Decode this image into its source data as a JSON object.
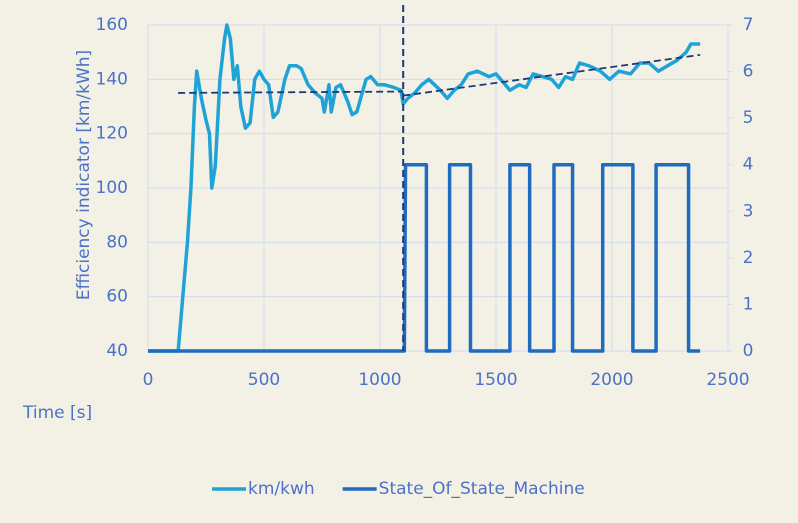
{
  "chart_data": {
    "type": "line",
    "y_label": "Efficiency indicator [km/kWh]",
    "x_label": "Time [s]",
    "xlim": [
      0,
      2500
    ],
    "xticks": [
      0,
      500,
      1000,
      1500,
      2000,
      2500
    ],
    "ylim": [
      40,
      160
    ],
    "yticks": [
      40,
      60,
      80,
      100,
      120,
      140,
      160
    ],
    "y2lim": [
      0,
      7
    ],
    "y2ticks": [
      0,
      1,
      2,
      3,
      4,
      5,
      6,
      7
    ],
    "grid": true,
    "legend": "bottom",
    "vline": 1100,
    "trendlines": [
      {
        "x": [
          130,
          1100
        ],
        "y": [
          135,
          135.5
        ]
      },
      {
        "x": [
          1100,
          2380
        ],
        "y": [
          134,
          149
        ]
      }
    ],
    "series": [
      {
        "name": "km/kwh",
        "color": "#1fa2d6",
        "x": [
          0,
          120,
          130,
          150,
          170,
          185,
          200,
          210,
          230,
          250,
          265,
          275,
          290,
          310,
          330,
          340,
          355,
          370,
          385,
          400,
          420,
          440,
          460,
          480,
          500,
          520,
          540,
          560,
          590,
          610,
          640,
          660,
          690,
          720,
          750,
          760,
          780,
          790,
          810,
          830,
          860,
          880,
          900,
          920,
          940,
          960,
          990,
          1020,
          1060,
          1090,
          1100,
          1120,
          1150,
          1180,
          1210,
          1260,
          1290,
          1320,
          1350,
          1380,
          1420,
          1470,
          1500,
          1530,
          1560,
          1600,
          1630,
          1660,
          1700,
          1740,
          1770,
          1800,
          1830,
          1860,
          1900,
          1950,
          1990,
          2030,
          2080,
          2120,
          2160,
          2200,
          2240,
          2280,
          2320,
          2340,
          2380
        ],
        "values": [
          40,
          40,
          40,
          60,
          80,
          100,
          130,
          143,
          133,
          125,
          120,
          100,
          108,
          140,
          155,
          160,
          155,
          140,
          145,
          130,
          122,
          124,
          140,
          143,
          140,
          138,
          126,
          128,
          140,
          145,
          145,
          144,
          138,
          135,
          133,
          128,
          138,
          128,
          137,
          138,
          132,
          127,
          128,
          134,
          140,
          141,
          138,
          138,
          137,
          136,
          131,
          133,
          135,
          138,
          140,
          136,
          133,
          136,
          138,
          142,
          143,
          141,
          142,
          139,
          136,
          138,
          137,
          142,
          141,
          140,
          137,
          141,
          140,
          146,
          145,
          143,
          140,
          143,
          142,
          146,
          146,
          143,
          145,
          147,
          150,
          153,
          153
        ]
      },
      {
        "name": "State_Of_State_Machine",
        "color": "#1f6bc0",
        "axis": "y2",
        "x": [
          0,
          1105,
          1110,
          1200,
          1200,
          1300,
          1300,
          1390,
          1390,
          1560,
          1560,
          1645,
          1645,
          1750,
          1750,
          1830,
          1830,
          1960,
          1960,
          2090,
          2090,
          2190,
          2190,
          2330,
          2330,
          2380
        ],
        "values": [
          0,
          0,
          4,
          4,
          0,
          0,
          4,
          4,
          0,
          0,
          4,
          4,
          0,
          0,
          4,
          4,
          0,
          0,
          4,
          4,
          0,
          0,
          4,
          4,
          0,
          0
        ]
      }
    ]
  }
}
